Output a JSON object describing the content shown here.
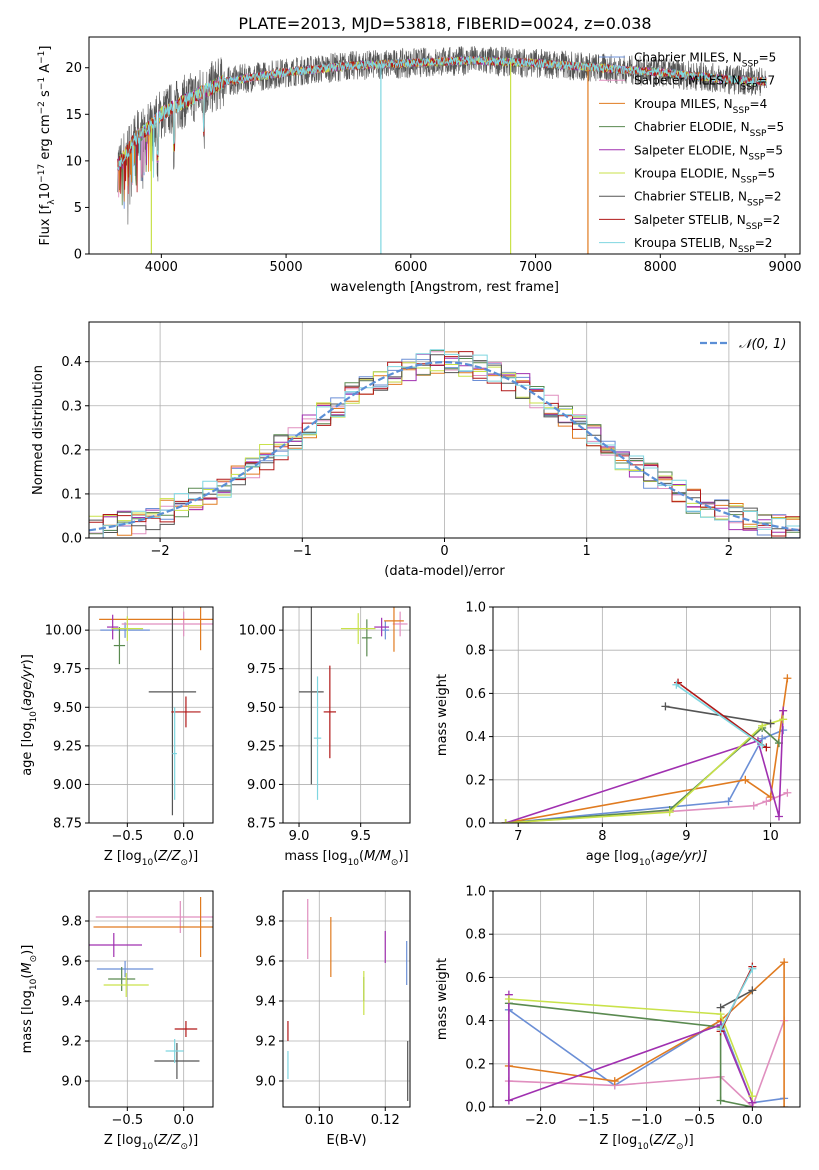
{
  "figure_title": "PLATE=2013, MJD=53818, FIBERID=0024, z=0.038",
  "series_colors": [
    "#6b8fd6",
    "#e08fbf",
    "#e07b20",
    "#5a8a50",
    "#a030b0",
    "#c9e24a",
    "#555555",
    "#b01818",
    "#7fd6e0"
  ],
  "chart_data": [
    {
      "id": "spectrum",
      "type": "line",
      "title": "PLATE=2013, MJD=53818, FIBERID=0024, z=0.038",
      "xlabel": "wavelength [Angstrom, rest frame]",
      "ylabel": "Flux [f",
      "ylabel_parts": [
        "Flux [f",
        "λ",
        "10",
        "−17",
        " erg cm",
        "−2",
        " s",
        "−1",
        " A",
        "−1",
        "]"
      ],
      "xlim": [
        3420,
        9120
      ],
      "ylim": [
        0,
        23.3
      ],
      "xticks": [
        4000,
        5000,
        6000,
        7000,
        8000,
        9000
      ],
      "yticks": [
        0,
        5,
        10,
        15,
        20
      ],
      "grid": false,
      "legend_position": "top-right",
      "legend": [
        {
          "main": "Chabrier MILES, N",
          "sub": "SSP",
          "tail": "=5"
        },
        {
          "main": "Salpeter MILES, N",
          "sub": "SSP",
          "tail": "=7"
        },
        {
          "main": "Kroupa MILES, N",
          "sub": "SSP",
          "tail": "=4"
        },
        {
          "main": "Chabrier ELODIE, N",
          "sub": "SSP",
          "tail": "=5"
        },
        {
          "main": "Salpeter ELODIE, N",
          "sub": "SSP",
          "tail": "=5"
        },
        {
          "main": "Kroupa ELODIE, N",
          "sub": "SSP",
          "tail": "=5"
        },
        {
          "main": "Chabrier STELIB, N",
          "sub": "SSP",
          "tail": "=2"
        },
        {
          "main": "Salpeter STELIB, N",
          "sub": "SSP",
          "tail": "=2"
        },
        {
          "main": "Kroupa STELIB, N",
          "sub": "SSP",
          "tail": "=2"
        }
      ],
      "continuum_x": [
        3650,
        3700,
        3750,
        3800,
        3900,
        4000,
        4200,
        4500,
        5000,
        5500,
        6000,
        6500,
        7000,
        7500,
        8000,
        8500,
        8850
      ],
      "continuum_y": [
        9.5,
        10.5,
        11.5,
        12.5,
        13.5,
        15.0,
        16.5,
        18.5,
        19.5,
        20.2,
        20.5,
        20.8,
        20.5,
        20.0,
        19.5,
        18.8,
        18.5
      ],
      "spectrum_range": [
        3650,
        8850
      ],
      "absorption_dips": [
        {
          "series": 5,
          "x": 3920,
          "y": 0
        },
        {
          "series": 8,
          "x": 5760,
          "y": 0
        },
        {
          "series": 5,
          "x": 6800,
          "y": 0
        },
        {
          "series": 2,
          "x": 7420,
          "y": 0
        }
      ]
    },
    {
      "id": "residual_histogram",
      "type": "histogram",
      "xlabel": "(data-model)/error",
      "ylabel": "Normed distribution",
      "xlim": [
        -2.5,
        2.5
      ],
      "ylim": [
        0,
        0.49
      ],
      "xticks": [
        -2,
        -1,
        0,
        1,
        2
      ],
      "yticks": [
        0.0,
        0.1,
        0.2,
        0.3,
        0.4
      ],
      "grid": true,
      "legend_position": "top-right",
      "gaussian_label": "𝒩(0, 1)",
      "gaussian": {
        "mean": 0,
        "sigma": 1
      },
      "bin_width": 0.1,
      "bins_start": -2.5
    },
    {
      "id": "age_vs_Z",
      "type": "errorbar",
      "xlabel": "Z [log",
      "xlabel_parts": [
        "Z [log",
        "10",
        "(Z/Z",
        "⊙",
        ")]"
      ],
      "ylabel_parts": [
        "age  [log",
        "10",
        "(age/yr)]"
      ],
      "xlim": [
        -0.84,
        0.26
      ],
      "ylim": [
        8.75,
        10.15
      ],
      "xticks": [
        -0.5,
        0.0
      ],
      "yticks": [
        8.75,
        9.0,
        9.25,
        9.5,
        9.75,
        10.0
      ],
      "grid": true,
      "points": [
        {
          "series": 0,
          "x": -0.52,
          "y": 10.0,
          "xerr": 0.22,
          "yerr": 0.05
        },
        {
          "series": 1,
          "x": 0.0,
          "y": 10.04,
          "xerr": 0.55,
          "yerr": 0.08
        },
        {
          "series": 2,
          "x": 0.15,
          "y": 10.07,
          "xerr": 0.9,
          "yerr": 0.2
        },
        {
          "series": 3,
          "x": -0.57,
          "y": 9.9,
          "xerr": 0.05,
          "yerr": 0.12
        },
        {
          "series": 4,
          "x": -0.63,
          "y": 10.02,
          "xerr": 0.05,
          "yerr": 0.08
        },
        {
          "series": 5,
          "x": -0.5,
          "y": 10.01,
          "xerr": 0.14,
          "yerr": 0.08
        },
        {
          "series": 6,
          "x": -0.1,
          "y": 9.6,
          "xerr": 0.21,
          "yerr": 0.8
        },
        {
          "series": 7,
          "x": 0.02,
          "y": 9.47,
          "xerr": 0.13,
          "yerr": 0.1
        },
        {
          "series": 8,
          "x": -0.08,
          "y": 9.2,
          "xerr": 0.02,
          "yerr": 0.3
        }
      ]
    },
    {
      "id": "age_vs_mass",
      "type": "errorbar",
      "xlabel_parts": [
        "mass [log",
        "10",
        "(M/M",
        "⊙",
        ")]"
      ],
      "xlim": [
        8.87,
        9.9
      ],
      "ylim": [
        8.75,
        10.15
      ],
      "xticks": [
        9.0,
        9.5
      ],
      "yticks": [
        8.75,
        9.0,
        9.25,
        9.5,
        9.75,
        10.0
      ],
      "grid": true,
      "points": [
        {
          "series": 0,
          "x": 9.7,
          "y": 10.0,
          "xerr": 0.03,
          "yerr": 0.06
        },
        {
          "series": 1,
          "x": 9.82,
          "y": 10.04,
          "xerr": 0.06,
          "yerr": 0.08
        },
        {
          "series": 2,
          "x": 9.77,
          "y": 10.06,
          "xerr": 0.08,
          "yerr": 0.2
        },
        {
          "series": 3,
          "x": 9.55,
          "y": 9.95,
          "xerr": 0.04,
          "yerr": 0.12
        },
        {
          "series": 4,
          "x": 9.67,
          "y": 10.02,
          "xerr": 0.06,
          "yerr": 0.06
        },
        {
          "series": 5,
          "x": 9.48,
          "y": 10.01,
          "xerr": 0.14,
          "yerr": 0.1
        },
        {
          "series": 6,
          "x": 9.1,
          "y": 9.6,
          "xerr": 0.1,
          "yerr": 0.6
        },
        {
          "series": 7,
          "x": 9.25,
          "y": 9.47,
          "xerr": 0.05,
          "yerr": 0.3
        },
        {
          "series": 8,
          "x": 9.15,
          "y": 9.3,
          "xerr": 0.03,
          "yerr": 0.4
        }
      ]
    },
    {
      "id": "massweight_vs_age",
      "type": "line",
      "xlabel_parts": [
        "age  [log",
        "10",
        "(age/yr)]"
      ],
      "ylabel": "mass weight",
      "xlim": [
        6.7,
        10.35
      ],
      "ylim": [
        0.0,
        1.0
      ],
      "xticks": [
        7,
        8,
        9,
        10
      ],
      "yticks": [
        0.0,
        0.2,
        0.4,
        0.6,
        0.8,
        1.0
      ],
      "grid": true,
      "series": [
        {
          "series": 0,
          "x": [
            6.85,
            9.5,
            9.9,
            10.15
          ],
          "y": [
            0.0,
            0.1,
            0.39,
            0.43
          ]
        },
        {
          "series": 1,
          "x": [
            6.85,
            9.8,
            9.95,
            10.2
          ],
          "y": [
            0.0,
            0.08,
            0.1,
            0.14
          ]
        },
        {
          "series": 2,
          "x": [
            6.85,
            9.7,
            10.0,
            10.2
          ],
          "y": [
            0.0,
            0.2,
            0.12,
            0.67
          ]
        },
        {
          "series": 3,
          "x": [
            6.85,
            8.8,
            9.9,
            10.1
          ],
          "y": [
            0.0,
            0.06,
            0.44,
            0.37
          ]
        },
        {
          "series": 4,
          "x": [
            6.85,
            9.85,
            10.1,
            10.15
          ],
          "y": [
            0.0,
            0.38,
            0.03,
            0.52
          ]
        },
        {
          "series": 5,
          "x": [
            6.85,
            8.8,
            9.9,
            10.15
          ],
          "y": [
            0.0,
            0.05,
            0.45,
            0.48
          ]
        },
        {
          "series": 6,
          "x": [
            8.75,
            10.0
          ],
          "y": [
            0.54,
            0.46
          ]
        },
        {
          "series": 7,
          "x": [
            8.9,
            9.95
          ],
          "y": [
            0.65,
            0.35
          ]
        },
        {
          "series": 8,
          "x": [
            8.88,
            9.9
          ],
          "y": [
            0.64,
            0.36
          ]
        }
      ]
    },
    {
      "id": "mass_vs_Z",
      "type": "errorbar",
      "xlabel_parts": [
        "Z [log",
        "10",
        "(Z/Z",
        "⊙",
        ")]"
      ],
      "ylabel_parts": [
        "mass [log",
        "10",
        "(M/M",
        "⊙",
        ")]"
      ],
      "xlim": [
        -0.84,
        0.26
      ],
      "ylim": [
        8.87,
        9.95
      ],
      "xticks": [
        -0.5,
        0.0
      ],
      "yticks": [
        9.0,
        9.2,
        9.4,
        9.6,
        9.8
      ],
      "grid": true,
      "points": [
        {
          "series": 0,
          "x": -0.52,
          "y": 9.56,
          "xerr": 0.25,
          "yerr": 0.04
        },
        {
          "series": 1,
          "x": -0.03,
          "y": 9.82,
          "xerr": 0.75,
          "yerr": 0.08
        },
        {
          "series": 2,
          "x": 0.15,
          "y": 9.77,
          "xerr": 0.95,
          "yerr": 0.15
        },
        {
          "series": 3,
          "x": -0.55,
          "y": 9.51,
          "xerr": 0.12,
          "yerr": 0.06
        },
        {
          "series": 4,
          "x": -0.62,
          "y": 9.68,
          "xerr": 0.25,
          "yerr": 0.06
        },
        {
          "series": 5,
          "x": -0.51,
          "y": 9.48,
          "xerr": 0.2,
          "yerr": 0.06
        },
        {
          "series": 6,
          "x": -0.06,
          "y": 9.1,
          "xerr": 0.2,
          "yerr": 0.09
        },
        {
          "series": 7,
          "x": 0.02,
          "y": 9.26,
          "xerr": 0.1,
          "yerr": 0.04
        },
        {
          "series": 8,
          "x": -0.08,
          "y": 9.15,
          "xerr": 0.08,
          "yerr": 0.06
        }
      ]
    },
    {
      "id": "EBV",
      "type": "errorbar",
      "xlabel": "E(B-V)",
      "xlim": [
        0.089,
        0.1275
      ],
      "ylim": [
        8.87,
        9.95
      ],
      "xticks": [
        0.1,
        0.12
      ],
      "yticks": [
        9.0,
        9.2,
        9.4,
        9.6,
        9.8
      ],
      "grid": true,
      "points": [
        {
          "series": 0,
          "x": 0.1265,
          "y": 9.59,
          "yerr": 0.11
        },
        {
          "series": 1,
          "x": 0.0965,
          "y": 9.76,
          "yerr": 0.15
        },
        {
          "series": 2,
          "x": 0.1035,
          "y": 9.67,
          "yerr": 0.15
        },
        {
          "series": 3,
          "x": 0.1135,
          "y": 9.46,
          "yerr": 0.06
        },
        {
          "series": 4,
          "x": 0.12,
          "y": 9.67,
          "yerr": 0.08
        },
        {
          "series": 5,
          "x": 0.1135,
          "y": 9.44,
          "yerr": 0.11
        },
        {
          "series": 6,
          "x": 0.1268,
          "y": 9.05,
          "yerr": 0.15
        },
        {
          "series": 7,
          "x": 0.0905,
          "y": 9.25,
          "yerr": 0.05
        },
        {
          "series": 8,
          "x": 0.0905,
          "y": 9.08,
          "yerr": 0.07
        }
      ]
    },
    {
      "id": "massweight_vs_Z",
      "type": "line",
      "xlabel_parts": [
        "Z [log",
        "10",
        "(Z/Z",
        "⊙",
        ")]"
      ],
      "ylabel": "mass weight",
      "xlim": [
        -2.45,
        0.45
      ],
      "ylim": [
        0.0,
        1.0
      ],
      "xticks": [
        -2.0,
        -1.5,
        -1.0,
        -0.5,
        0.0
      ],
      "yticks": [
        0.0,
        0.2,
        0.4,
        0.6,
        0.8,
        1.0
      ],
      "grid": true,
      "series": [
        {
          "series": 0,
          "x": [
            -2.3,
            -1.3,
            -0.3,
            0.0,
            0.3
          ],
          "y": [
            0.45,
            0.1,
            0.4,
            0.02,
            0.04
          ]
        },
        {
          "series": 1,
          "x": [
            -2.3,
            -1.3,
            -0.3,
            0.0,
            0.3
          ],
          "y": [
            0.12,
            0.1,
            0.14,
            0.0,
            0.4
          ]
        },
        {
          "series": 2,
          "x": [
            -2.3,
            -1.3,
            -0.3,
            0.3,
            0.3
          ],
          "y": [
            0.19,
            0.12,
            0.4,
            0.67,
            0.0
          ]
        },
        {
          "series": 3,
          "x": [
            -2.3,
            -0.3,
            -0.3,
            0.0
          ],
          "y": [
            0.48,
            0.37,
            0.03,
            0.0
          ]
        },
        {
          "series": 4,
          "x": [
            -2.3,
            -2.3,
            -0.3,
            0.0
          ],
          "y": [
            0.52,
            0.03,
            0.38,
            0.02
          ]
        },
        {
          "series": 5,
          "x": [
            -2.3,
            -0.3,
            0.0
          ],
          "y": [
            0.5,
            0.43,
            0.05
          ]
        },
        {
          "series": 6,
          "x": [
            -0.3,
            0.0
          ],
          "y": [
            0.46,
            0.54
          ]
        },
        {
          "series": 7,
          "x": [
            -0.3,
            0.0
          ],
          "y": [
            0.35,
            0.65
          ]
        },
        {
          "series": 8,
          "x": [
            -0.3,
            0.0
          ],
          "y": [
            0.36,
            0.64
          ]
        }
      ]
    }
  ]
}
